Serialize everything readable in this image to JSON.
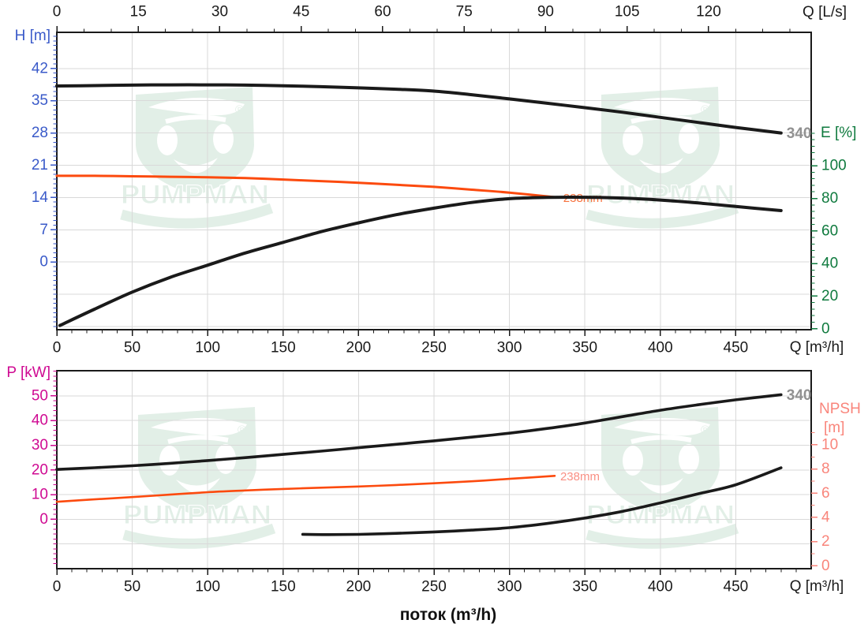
{
  "watermark": {
    "brand": "PUMPMAN",
    "registered_mark": "®"
  },
  "footer": {
    "flow_axis_label": "поток (m³/h)"
  },
  "chart_data": [
    {
      "id": "head-efficiency-chart",
      "type": "line",
      "axes": {
        "x_bottom": {
          "label": "Q [m³/h]",
          "color": "#1a1a1a",
          "range": [
            0,
            500
          ],
          "major_ticks": [
            0,
            50,
            100,
            150,
            200,
            250,
            300,
            350,
            400,
            450
          ],
          "minor_step": 10,
          "minor_range": [
            10,
            490
          ]
        },
        "x_top": {
          "label": "Q [L/s]",
          "color": "#1a1a1a",
          "range": [
            0,
            138.9
          ],
          "major_ticks": [
            0,
            15,
            30,
            45,
            60,
            75,
            90,
            105,
            120
          ],
          "minor_step": 5,
          "minor_range": [
            5,
            135
          ]
        },
        "y_left": {
          "label": "H [m]",
          "color": "#3a5ac9",
          "range": [
            -14.7,
            49.85
          ],
          "major_ticks": [
            0,
            7,
            14,
            21,
            28,
            35,
            42
          ],
          "minor_step": 1,
          "minor_range": [
            -14,
            49
          ]
        },
        "y_right": {
          "label": "E [%]",
          "color": "#0f7a3e",
          "range": [
            -0.6,
            181.9
          ],
          "major_ticks": [
            0,
            20,
            40,
            60,
            80,
            100
          ],
          "minor_step": 4,
          "minor_range": [
            4,
            120
          ]
        }
      },
      "grid": {
        "x_values": [
          50,
          100,
          150,
          200,
          250,
          300,
          350,
          400,
          450
        ],
        "y_axis": "y_left",
        "y_values": [
          -14,
          -7,
          0,
          7,
          14,
          21,
          28,
          35,
          42
        ]
      },
      "series": [
        {
          "name": "head-340mm",
          "axis": "y_left",
          "color": "#1a1a1a",
          "width": 4,
          "end_label": {
            "text": "340",
            "color": "#8b8b8b",
            "size": 19,
            "bold": true
          },
          "points": [
            [
              0,
              38.2
            ],
            [
              25,
              38.3
            ],
            [
              50,
              38.4
            ],
            [
              75,
              38.45
            ],
            [
              100,
              38.45
            ],
            [
              125,
              38.4
            ],
            [
              150,
              38.25
            ],
            [
              175,
              38.05
            ],
            [
              200,
              37.8
            ],
            [
              225,
              37.5
            ],
            [
              250,
              37.1
            ],
            [
              275,
              36.3
            ],
            [
              300,
              35.4
            ],
            [
              325,
              34.45
            ],
            [
              350,
              33.5
            ],
            [
              375,
              32.5
            ],
            [
              400,
              31.4
            ],
            [
              425,
              30.3
            ],
            [
              450,
              29.2
            ],
            [
              480,
              28.0
            ]
          ]
        },
        {
          "name": "head-238mm",
          "axis": "y_left",
          "color": "#fc4a0e",
          "width": 3,
          "end_label": {
            "text": "238mm",
            "color": "#f66a35",
            "size": 15,
            "bold": false
          },
          "points": [
            [
              0,
              18.7
            ],
            [
              25,
              18.7
            ],
            [
              50,
              18.6
            ],
            [
              75,
              18.5
            ],
            [
              100,
              18.4
            ],
            [
              125,
              18.2
            ],
            [
              150,
              17.9
            ],
            [
              175,
              17.55
            ],
            [
              200,
              17.2
            ],
            [
              225,
              16.75
            ],
            [
              250,
              16.3
            ],
            [
              275,
              15.7
            ],
            [
              300,
              15.05
            ],
            [
              332,
              14.0
            ]
          ]
        },
        {
          "name": "efficiency-340mm",
          "axis": "y_right",
          "color": "#1a1a1a",
          "width": 4,
          "points": [
            [
              2,
              2
            ],
            [
              25,
              12
            ],
            [
              50,
              22.5
            ],
            [
              75,
              31.5
            ],
            [
              100,
              39
            ],
            [
              125,
              46.5
            ],
            [
              150,
              53
            ],
            [
              175,
              59.5
            ],
            [
              200,
              65
            ],
            [
              225,
              70
            ],
            [
              250,
              74
            ],
            [
              275,
              77.5
            ],
            [
              300,
              79.8
            ],
            [
              325,
              80.6
            ],
            [
              350,
              80.7
            ],
            [
              375,
              80.2
            ],
            [
              400,
              79
            ],
            [
              425,
              77.2
            ],
            [
              450,
              75
            ],
            [
              480,
              72.5
            ]
          ]
        }
      ]
    },
    {
      "id": "power-npsh-chart",
      "type": "line",
      "axes": {
        "x_bottom": {
          "label": "Q [m³/h]",
          "color": "#1a1a1a",
          "range": [
            0,
            500
          ],
          "major_ticks": [
            0,
            50,
            100,
            150,
            200,
            250,
            300,
            350,
            400,
            450
          ],
          "minor_step": 10,
          "minor_range": [
            10,
            490
          ]
        },
        "y_left": {
          "label": "P [kW]",
          "color": "#cf0a92",
          "range": [
            -20,
            60.2
          ],
          "major_ticks": [
            0,
            10,
            20,
            30,
            40,
            50
          ],
          "minor_step": 2,
          "minor_range": [
            -18,
            60
          ]
        },
        "y_right": {
          "label": "NPSH",
          "label2": "[m]",
          "color": "#f9857b",
          "range": [
            -0.24,
            16.13
          ],
          "major_ticks": [
            0,
            2,
            4,
            6,
            8,
            10
          ],
          "minor_step": 1,
          "minor_range": [
            1,
            11
          ]
        }
      },
      "grid": {
        "x_values": [
          50,
          100,
          150,
          200,
          250,
          300,
          350,
          400,
          450
        ],
        "y_axis": "y_left",
        "y_values": [
          -10,
          0,
          10,
          20,
          30,
          40,
          50
        ]
      },
      "series": [
        {
          "name": "power-340mm",
          "axis": "y_left",
          "color": "#1a1a1a",
          "width": 3.6,
          "end_label": {
            "text": "340",
            "color": "#8b8b8b",
            "size": 19,
            "bold": true
          },
          "points": [
            [
              0,
              20.2
            ],
            [
              25,
              20.9
            ],
            [
              50,
              21.7
            ],
            [
              75,
              22.7
            ],
            [
              100,
              23.8
            ],
            [
              125,
              25.0
            ],
            [
              150,
              26.3
            ],
            [
              175,
              27.6
            ],
            [
              200,
              29.0
            ],
            [
              225,
              30.4
            ],
            [
              250,
              31.8
            ],
            [
              275,
              33.3
            ],
            [
              300,
              34.9
            ],
            [
              325,
              36.8
            ],
            [
              350,
              39.0
            ],
            [
              375,
              41.6
            ],
            [
              400,
              44.2
            ],
            [
              425,
              46.4
            ],
            [
              450,
              48.4
            ],
            [
              480,
              50.5
            ]
          ]
        },
        {
          "name": "power-238mm",
          "axis": "y_left",
          "color": "#fc4a0e",
          "width": 2.6,
          "end_label": {
            "text": "238mm",
            "color": "#f9897c",
            "size": 15,
            "bold": false
          },
          "points": [
            [
              0,
              7.1
            ],
            [
              25,
              8.1
            ],
            [
              50,
              9.0
            ],
            [
              75,
              10.0
            ],
            [
              100,
              11.0
            ],
            [
              125,
              11.7
            ],
            [
              150,
              12.3
            ],
            [
              175,
              12.8
            ],
            [
              200,
              13.3
            ],
            [
              225,
              13.9
            ],
            [
              250,
              14.6
            ],
            [
              275,
              15.4
            ],
            [
              300,
              16.4
            ],
            [
              330,
              17.6
            ]
          ]
        },
        {
          "name": "npsh-curve",
          "axis": "y_right",
          "color": "#1a1a1a",
          "width": 3.6,
          "points": [
            [
              163,
              2.6
            ],
            [
              180,
              2.58
            ],
            [
              200,
              2.6
            ],
            [
              225,
              2.68
            ],
            [
              250,
              2.8
            ],
            [
              275,
              2.95
            ],
            [
              300,
              3.15
            ],
            [
              325,
              3.5
            ],
            [
              350,
              3.95
            ],
            [
              375,
              4.5
            ],
            [
              400,
              5.2
            ],
            [
              425,
              5.95
            ],
            [
              450,
              6.7
            ],
            [
              480,
              8.1
            ]
          ]
        }
      ]
    }
  ]
}
